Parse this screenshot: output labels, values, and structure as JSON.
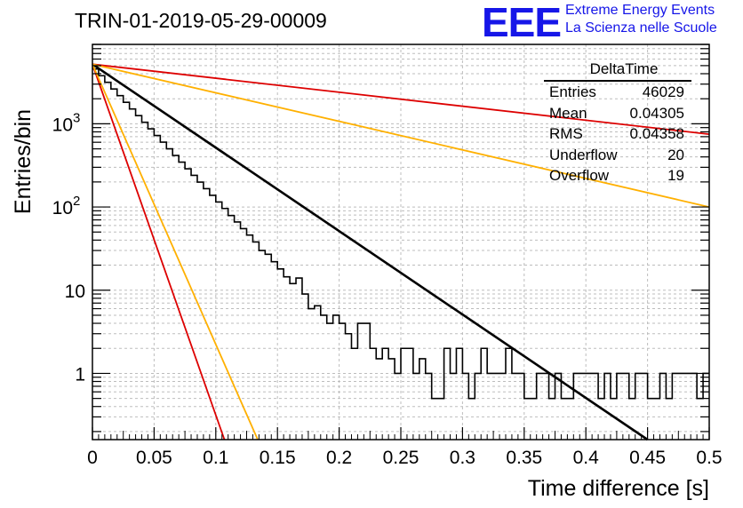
{
  "title": "TRIN-01-2019-05-29-00009",
  "branding": {
    "logo": "EEE",
    "line1": "Extreme Energy Events",
    "line2": "La Scienza nelle Scuole"
  },
  "stats_box": {
    "name": "DeltaTime",
    "rows": [
      {
        "label": "Entries",
        "value": "46029"
      },
      {
        "label": "Mean",
        "value": "0.04305"
      },
      {
        "label": "RMS",
        "value": "0.04358"
      },
      {
        "label": "Underflow",
        "value": "20"
      },
      {
        "label": "Overflow",
        "value": "19"
      }
    ]
  },
  "colors": {
    "histogram": "#000000",
    "fit": "#000000",
    "red": "#dd0000",
    "orange": "#ffb000",
    "logo": "#1616e8",
    "grid": "#bdbdbd"
  },
  "chart_data": {
    "type": "line",
    "xlabel": "Time difference [s]",
    "ylabel": "Entries/bin",
    "xlim": [
      0,
      0.5
    ],
    "ylim": [
      0.16,
      9000
    ],
    "yscale": "log",
    "grid": true,
    "x_ticks": [
      "0",
      "0.05",
      "0.1",
      "0.15",
      "0.2",
      "0.25",
      "0.3",
      "0.35",
      "0.4",
      "0.45",
      "0.5"
    ],
    "y_ticks": [
      "1",
      "10",
      "10^2",
      "10^3"
    ],
    "histogram": {
      "bin_width": 0.005,
      "counts": [
        4550,
        3785,
        3149,
        2620,
        2180,
        1813,
        1509,
        1255,
        1044,
        869,
        723,
        601,
        500,
        416,
        346,
        288,
        240,
        199,
        166,
        138,
        115,
        96,
        79,
        66,
        55,
        46,
        38,
        30,
        27,
        22,
        18,
        14.5,
        12,
        14,
        9,
        6,
        6.5,
        5,
        4,
        5,
        4,
        3,
        2,
        4,
        4,
        2,
        1.5,
        2,
        1.5,
        1,
        2,
        2,
        1,
        1.5,
        1,
        0.5,
        0.5,
        2,
        1,
        2,
        1,
        0.5,
        1,
        2,
        1,
        1,
        1,
        2,
        1,
        1,
        0.5,
        0.5,
        1,
        1,
        0.5,
        1,
        0.5,
        0.5,
        1,
        1,
        1,
        1,
        0.5,
        1,
        0.5,
        1,
        1,
        0.5,
        1,
        1,
        0.5,
        0.5,
        1,
        0.5,
        1,
        1,
        1,
        1,
        0.5,
        1
      ]
    },
    "series": [
      {
        "name": "fit",
        "color": "#000000",
        "x": [
          0,
          0.45
        ],
        "y": [
          5200,
          0.16
        ]
      },
      {
        "name": "red_flat",
        "color": "#dd0000",
        "x": [
          0,
          0.5
        ],
        "y": [
          5200,
          750
        ]
      },
      {
        "name": "orange_flat",
        "color": "#ffb000",
        "x": [
          0,
          0.5
        ],
        "y": [
          5200,
          100
        ]
      },
      {
        "name": "red_steep",
        "color": "#dd0000",
        "x": [
          0,
          0.107
        ],
        "y": [
          5200,
          0.16
        ]
      },
      {
        "name": "orange_steep",
        "color": "#ffb000",
        "x": [
          0,
          0.134
        ],
        "y": [
          5200,
          0.16
        ]
      }
    ]
  }
}
